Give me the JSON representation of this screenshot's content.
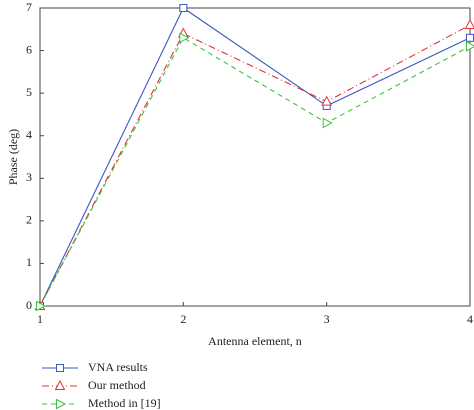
{
  "chart_data": {
    "type": "line",
    "x_label": "Antenna element, n",
    "y_label": "Phase (deg)",
    "x": [
      1,
      2,
      3,
      4
    ],
    "series": [
      {
        "name": "VNA results",
        "color": "#3a58c0",
        "marker": "square",
        "linestyle": "solid",
        "values": [
          0,
          7,
          4.7,
          6.3
        ]
      },
      {
        "name": "Our method",
        "color": "#e03535",
        "marker": "triangle-up",
        "linestyle": "dashdot",
        "values": [
          0,
          6.4,
          4.8,
          6.6
        ]
      },
      {
        "name": "Method in [19]",
        "color": "#3cc43c",
        "marker": "triangle-right",
        "linestyle": "dashed",
        "values": [
          0,
          6.3,
          4.3,
          6.1
        ]
      }
    ],
    "xlim": [
      1,
      4
    ],
    "xticks": [
      1,
      2,
      3,
      4
    ],
    "ylim": [
      0,
      7
    ],
    "yticks": [
      0,
      1,
      2,
      3,
      4,
      5,
      6,
      7
    ],
    "legend": "bottom-left"
  }
}
